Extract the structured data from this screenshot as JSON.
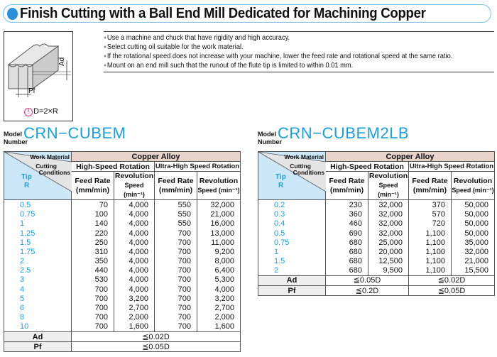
{
  "title": "Finish Cutting with a Ball End Mill Dedicated for Machining Copper",
  "figure": {
    "labels": {
      "ad": "Ad",
      "pf": "Pf"
    },
    "caption": "D=2×R",
    "caption_icon": "!"
  },
  "notes": [
    "Use a machine and chuck that have rigidity and high accuracy.",
    "Select cutting oil suitable for the work material.",
    "If the rotational speed does not increase with your machine, lower the feed rate and rotational speed at the same ratio.",
    "Mount on an end mill such that the runout of the flute tip is limited to within 0.01 mm."
  ],
  "header": {
    "model": "Model",
    "number": "Number",
    "work_material": "Work Material",
    "cutting": "Cutting",
    "conditions": "Conditions",
    "tip": "Tip",
    "r": "R",
    "material": "Copper Alloy",
    "high": "High-Speed Rotation",
    "ultra": "Ultra-High Speed Rotation",
    "feed": "Feed Rate",
    "feed_unit": "(mm/min)",
    "rev": "Revolution",
    "rev_unit": "Speed (min⁻¹)",
    "ad": "Ad",
    "pf": "Pf"
  },
  "tables": [
    {
      "model": "CRN−CUBEM",
      "rows": [
        [
          "0.5",
          "70",
          "4,000",
          "550",
          "32,000"
        ],
        [
          "0.75",
          "100",
          "4,000",
          "550",
          "21,000"
        ],
        [
          "1",
          "140",
          "4,000",
          "550",
          "16,000"
        ],
        [
          "1.25",
          "220",
          "4,000",
          "700",
          "13,000"
        ],
        [
          "1.5",
          "250",
          "4,000",
          "700",
          "11,000"
        ],
        [
          "1.75",
          "310",
          "4,000",
          "700",
          "9,200"
        ],
        [
          "2",
          "350",
          "4,000",
          "700",
          "8,000"
        ],
        [
          "2.5",
          "440",
          "4,000",
          "700",
          "6,400"
        ],
        [
          "3",
          "530",
          "4,000",
          "700",
          "5,300"
        ],
        [
          "4",
          "700",
          "4,000",
          "700",
          "4,000"
        ],
        [
          "5",
          "700",
          "3,200",
          "700",
          "3,200"
        ],
        [
          "6",
          "700",
          "2,700",
          "700",
          "2,700"
        ],
        [
          "8",
          "700",
          "2,000",
          "700",
          "2,000"
        ],
        [
          "10",
          "700",
          "1,600",
          "700",
          "1,600"
        ]
      ],
      "ad": [
        "≦0.02D"
      ],
      "pf": [
        "≦0.05D"
      ]
    },
    {
      "model": "CRN−CUBEM2LB",
      "rows": [
        [
          "0.2",
          "230",
          "32,000",
          "370",
          "50,000"
        ],
        [
          "0.3",
          "360",
          "32,000",
          "570",
          "50,000"
        ],
        [
          "0.4",
          "460",
          "32,000",
          "720",
          "50,000"
        ],
        [
          "0.5",
          "690",
          "32,000",
          "1,100",
          "50,000"
        ],
        [
          "0.75",
          "680",
          "25,000",
          "1,100",
          "35,000"
        ],
        [
          "1",
          "680",
          "20,000",
          "1,100",
          "32,000"
        ],
        [
          "1.5",
          "680",
          "12,500",
          "1,100",
          "21,000"
        ],
        [
          "2",
          "680",
          "9,500",
          "1,100",
          "15,500"
        ]
      ],
      "ad": [
        "≦0.05D",
        "≦0.02D"
      ],
      "pf": [
        "≦0.2D",
        "≦0.05D"
      ]
    }
  ]
}
